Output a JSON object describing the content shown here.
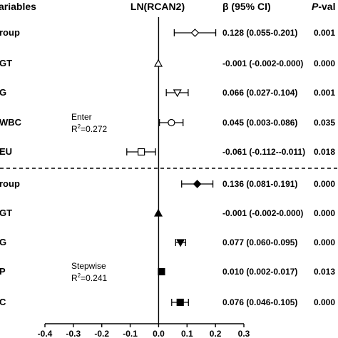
{
  "chart_data": {
    "type": "forest",
    "xlim": [
      -0.4,
      0.3
    ],
    "x_ticks": [
      "-0.4",
      "-0.3",
      "-0.2",
      "-0.1",
      "0.0",
      "0.1",
      "0.2",
      "0.3"
    ],
    "headers": {
      "variables": "ariables",
      "outcome": "LN(RCAN2)",
      "beta": "β (95% CI)",
      "p_prefix": "P",
      "p_suffix": "-val"
    },
    "groups": [
      {
        "method": "Enter",
        "r2_prefix": "R",
        "r2_sup": "2",
        "r2_value": "=0.272",
        "rows": [
          {
            "label": "roup",
            "beta": 0.128,
            "lo": 0.055,
            "hi": 0.201,
            "ci_text": "0.128 (0.055-0.201)",
            "p": "0.001",
            "marker": "diamond-open"
          },
          {
            "label": "GT",
            "beta": -0.001,
            "lo": -0.002,
            "hi": 0.0,
            "ci_text": "-0.001 (-0.002-0.000)",
            "p": "0.000",
            "marker": "triangle-up-open"
          },
          {
            "label": "G",
            "beta": 0.066,
            "lo": 0.027,
            "hi": 0.104,
            "ci_text": "0.066 (0.027-0.104)",
            "p": "0.001",
            "marker": "triangle-down-open"
          },
          {
            "label": "WBC",
            "beta": 0.045,
            "lo": 0.003,
            "hi": 0.086,
            "ci_text": "0.045 (0.003-0.086)",
            "p": "0.035",
            "marker": "circle-open"
          },
          {
            "label": "EU",
            "beta": -0.061,
            "lo": -0.112,
            "hi": -0.011,
            "ci_text": "-0.061 (-0.112--0.011)",
            "p": "0.018",
            "marker": "square-open"
          }
        ]
      },
      {
        "method": "Stepwise",
        "r2_prefix": "R",
        "r2_sup": "2",
        "r2_value": "=0.241",
        "rows": [
          {
            "label": "roup",
            "beta": 0.136,
            "lo": 0.081,
            "hi": 0.191,
            "ci_text": "0.136 (0.081-0.191)",
            "p": "0.000",
            "marker": "diamond-filled"
          },
          {
            "label": "GT",
            "beta": -0.001,
            "lo": -0.002,
            "hi": 0.0,
            "ci_text": "-0.001 (-0.002-0.000)",
            "p": "0.000",
            "marker": "triangle-up-filled"
          },
          {
            "label": "G",
            "beta": 0.077,
            "lo": 0.06,
            "hi": 0.095,
            "ci_text": "0.077 (0.060-0.095)",
            "p": "0.000",
            "marker": "triangle-down-filled"
          },
          {
            "label": "P",
            "beta": 0.01,
            "lo": 0.002,
            "hi": 0.017,
            "ci_text": "0.010 (0.002-0.017)",
            "p": "0.013",
            "marker": "square-filled"
          },
          {
            "label": "C",
            "beta": 0.076,
            "lo": 0.046,
            "hi": 0.105,
            "ci_text": "0.076 (0.046-0.105)",
            "p": "0.000",
            "marker": "square-filled"
          }
        ]
      }
    ]
  }
}
